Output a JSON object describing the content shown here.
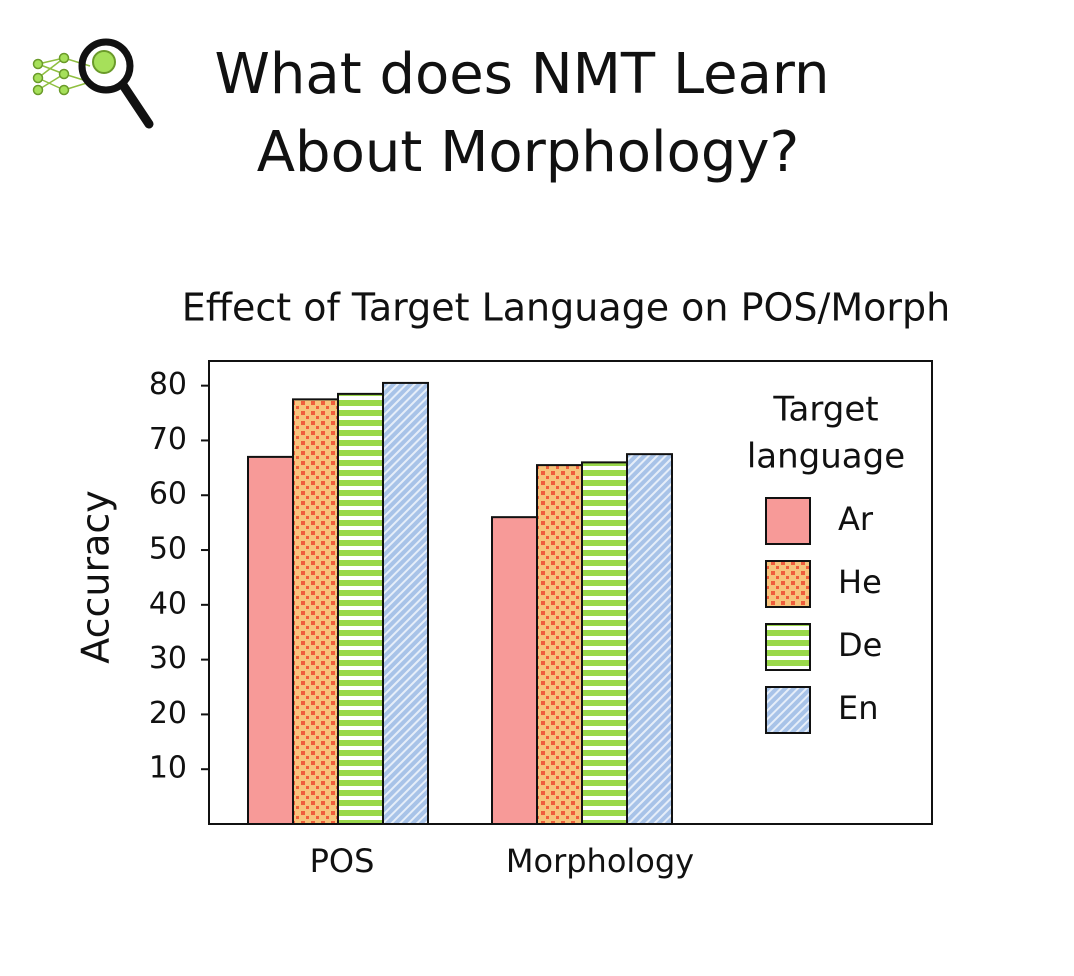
{
  "header": {
    "title_lines": [
      "What does NMT Learn",
      "About Morphology?"
    ]
  },
  "chart_data": {
    "type": "bar",
    "title": "Effect of Target Language on POS/Morph",
    "y_label": "Accuracy",
    "categories": [
      "POS",
      "Morphology"
    ],
    "series": [
      {
        "name": "Ar",
        "color": "#f79a98",
        "pattern": "solid",
        "values": [
          67,
          56
        ]
      },
      {
        "name": "He",
        "color": "#f7c47c",
        "pattern": "dots",
        "values": [
          77.5,
          65.5
        ]
      },
      {
        "name": "De",
        "color": "#9ad84a",
        "pattern": "hstripes",
        "values": [
          78.5,
          66
        ]
      },
      {
        "name": "En",
        "color": "#a8c3e8",
        "pattern": "diagonal",
        "values": [
          80.5,
          67.5
        ]
      }
    ],
    "legend_title": [
      "Target",
      "language"
    ],
    "ylim": [
      0,
      84.5
    ],
    "yticks": [
      10,
      20,
      30,
      40,
      50,
      60,
      70,
      80
    ],
    "grid": false
  }
}
